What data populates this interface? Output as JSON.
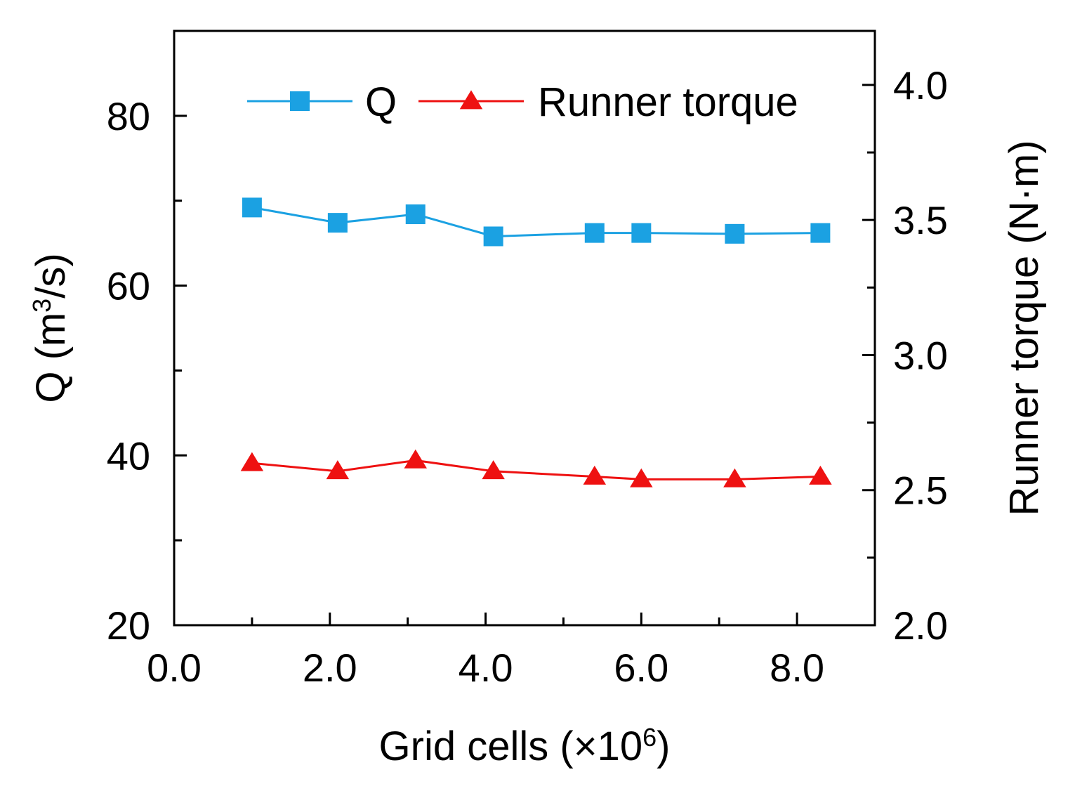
{
  "chart_data": {
    "type": "line",
    "title": "",
    "xlabel": "Grid cells (×10",
    "xlabel_sup": "6",
    "xlabel_end": ")",
    "ylabel_left": "Q (m",
    "ylabel_left_sup": "3",
    "ylabel_left_end": "/s)",
    "ylabel_right": "Runner torque (N·m)",
    "xlim": [
      0,
      9.0
    ],
    "ylim_left": [
      20,
      90
    ],
    "ylim_right": [
      2.0,
      4.2
    ],
    "x_ticks": [
      0,
      2,
      4,
      6,
      8
    ],
    "x_tick_labels": [
      "0.0",
      "2.0",
      "4.0",
      "6.0",
      "8.0"
    ],
    "x_minor_ticks": [
      1,
      3,
      5,
      7
    ],
    "y_left_ticks": [
      20,
      40,
      60,
      80
    ],
    "y_left_tick_labels": [
      "20",
      "40",
      "60",
      "80"
    ],
    "y_left_minor_ticks": [
      30,
      50,
      70
    ],
    "y_right_ticks": [
      2.0,
      2.5,
      3.0,
      3.5,
      4.0
    ],
    "y_right_tick_labels": [
      "2.0",
      "2.5",
      "3.0",
      "3.5",
      "4.0"
    ],
    "y_right_minor_ticks": [
      2.25,
      2.75,
      3.25,
      3.75
    ],
    "legend_position": "top",
    "series": [
      {
        "name": "Q",
        "axis": "left",
        "color": "#1ba1e2",
        "marker": "square",
        "x": [
          1.0,
          2.1,
          3.1,
          4.1,
          5.4,
          6.0,
          7.2,
          8.3
        ],
        "values": [
          69.2,
          67.4,
          68.4,
          65.8,
          66.2,
          66.2,
          66.1,
          66.2
        ]
      },
      {
        "name": "Runner torque",
        "axis": "right",
        "color": "#ee1111",
        "marker": "triangle",
        "x": [
          1.0,
          2.1,
          3.1,
          4.1,
          5.4,
          6.0,
          7.2,
          8.3
        ],
        "values": [
          2.6,
          2.57,
          2.61,
          2.57,
          2.55,
          2.54,
          2.54,
          2.55
        ]
      }
    ]
  }
}
